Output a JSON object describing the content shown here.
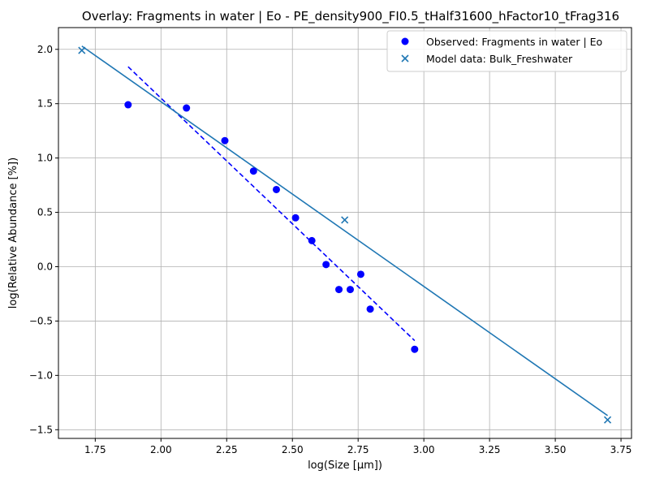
{
  "chart_data": {
    "type": "scatter",
    "title": "Overlay: Fragments in water | Eo - PE_density900_FI0.5_tHalf31600_hFactor10_tFrag316",
    "xlabel": "log(Size [μm])",
    "ylabel": "log(Relative Abundance [%])",
    "xlim": [
      1.61,
      3.79
    ],
    "ylim": [
      -1.58,
      2.2
    ],
    "x_ticks": [
      "1.75",
      "2.00",
      "2.25",
      "2.50",
      "2.75",
      "3.00",
      "3.25",
      "3.50",
      "3.75"
    ],
    "y_ticks": [
      "−1.5",
      "−1.0",
      "−0.5",
      "0.0",
      "0.5",
      "1.0",
      "1.5",
      "2.0"
    ],
    "grid": true,
    "legend_position": "top-right",
    "series": [
      {
        "name": "Observed: Fragments in water | Eo",
        "marker": "circle",
        "color": "#0000ff",
        "points": [
          [
            1.875,
            1.49
          ],
          [
            2.097,
            1.46
          ],
          [
            2.243,
            1.16
          ],
          [
            2.352,
            0.88
          ],
          [
            2.439,
            0.71
          ],
          [
            2.512,
            0.45
          ],
          [
            2.574,
            0.24
          ],
          [
            2.628,
            0.02
          ],
          [
            2.677,
            -0.21
          ],
          [
            2.72,
            -0.21
          ],
          [
            2.76,
            -0.07
          ],
          [
            2.796,
            -0.39
          ],
          [
            2.965,
            -0.76
          ]
        ]
      },
      {
        "name": "Model data: Bulk_Freshwater",
        "marker": "x",
        "color": "#1f77b4",
        "points": [
          [
            1.699,
            1.99
          ],
          [
            2.699,
            0.43
          ],
          [
            3.699,
            -1.41
          ]
        ]
      }
    ],
    "fit_lines": [
      {
        "style": "dashed",
        "color": "#0000ff",
        "from": [
          1.875,
          1.84
        ],
        "to": [
          2.965,
          -0.68
        ]
      },
      {
        "style": "solid",
        "color": "#1f77b4",
        "from": [
          1.699,
          2.03
        ],
        "to": [
          3.699,
          -1.37
        ]
      }
    ]
  }
}
